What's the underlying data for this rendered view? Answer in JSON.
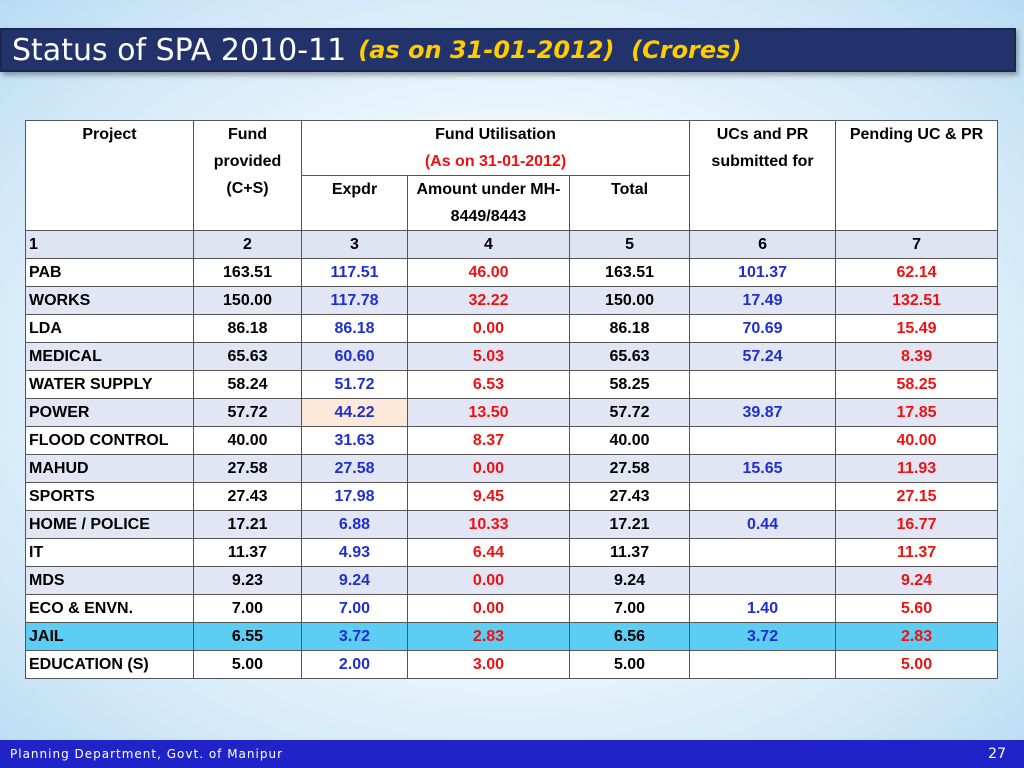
{
  "slide": {
    "title_main": "Status of SPA 2010-11",
    "title_sub": "(as on 31-01-2012)  (Crores)",
    "footer_left": "Planning Department, Govt. of Manipur",
    "page_number": "27"
  },
  "table": {
    "headers": {
      "project": "Project",
      "fund_provided": "Fund provided (C+S)",
      "fund_utilisation": "Fund Utilisation",
      "fund_utilisation_date": "(As on 31-01-2012)",
      "expdr": "Expdr",
      "amount_under": "Amount under MH-8449/8443",
      "total": "Total",
      "ucs_pr": "UCs and PR submitted for",
      "pending": "Pending UC & PR"
    },
    "column_numbers": [
      "1",
      "2",
      "3",
      "4",
      "5",
      "6",
      "7"
    ],
    "rows": [
      {
        "project": "PAB",
        "fund": "163.51",
        "expdr": "117.51",
        "amount": "46.00",
        "total": "163.51",
        "ucs": "101.37",
        "pending": "62.14"
      },
      {
        "project": "WORKS",
        "fund": "150.00",
        "expdr": "117.78",
        "amount": "32.22",
        "total": "150.00",
        "ucs": "17.49",
        "pending": "132.51"
      },
      {
        "project": "LDA",
        "fund": "86.18",
        "expdr": "86.18",
        "amount": "0.00",
        "total": "86.18",
        "ucs": "70.69",
        "pending": "15.49"
      },
      {
        "project": "MEDICAL",
        "fund": "65.63",
        "expdr": "60.60",
        "amount": "5.03",
        "total": "65.63",
        "ucs": "57.24",
        "pending": "8.39"
      },
      {
        "project": "WATER SUPPLY",
        "fund": "58.24",
        "expdr": "51.72",
        "amount": "6.53",
        "total": "58.25",
        "ucs": "",
        "pending": "58.25"
      },
      {
        "project": "POWER",
        "fund": "57.72",
        "expdr": "44.22",
        "amount": "13.50",
        "total": "57.72",
        "ucs": "39.87",
        "pending": "17.85"
      },
      {
        "project": "FLOOD CONTROL",
        "fund": "40.00",
        "expdr": "31.63",
        "amount": "8.37",
        "total": "40.00",
        "ucs": "",
        "pending": "40.00"
      },
      {
        "project": "MAHUD",
        "fund": "27.58",
        "expdr": "27.58",
        "amount": "0.00",
        "total": "27.58",
        "ucs": "15.65",
        "pending": "11.93"
      },
      {
        "project": "SPORTS",
        "fund": "27.43",
        "expdr": "17.98",
        "amount": "9.45",
        "total": "27.43",
        "ucs": "",
        "pending": "27.15"
      },
      {
        "project": "HOME / POLICE",
        "fund": "17.21",
        "expdr": "6.88",
        "amount": "10.33",
        "total": "17.21",
        "ucs": "0.44",
        "pending": "16.77"
      },
      {
        "project": "IT",
        "fund": "11.37",
        "expdr": "4.93",
        "amount": "6.44",
        "total": "11.37",
        "ucs": "",
        "pending": "11.37"
      },
      {
        "project": "MDS",
        "fund": "9.23",
        "expdr": "9.24",
        "amount": "0.00",
        "total": "9.24",
        "ucs": "",
        "pending": "9.24"
      },
      {
        "project": "ECO & ENVN.",
        "fund": "7.00",
        "expdr": "7.00",
        "amount": "0.00",
        "total": "7.00",
        "ucs": "1.40",
        "pending": "5.60"
      },
      {
        "project": "JAIL",
        "fund": "6.55",
        "expdr": "3.72",
        "amount": "2.83",
        "total": "6.56",
        "ucs": "3.72",
        "pending": "2.83"
      },
      {
        "project": "EDUCATION (S)",
        "fund": "5.00",
        "expdr": "2.00",
        "amount": "3.00",
        "total": "5.00",
        "ucs": "",
        "pending": "5.00"
      }
    ]
  },
  "colors": {
    "title_bar": "#22336b",
    "title_sub": "#ffcc00",
    "value_blue": "#1e2fd0",
    "value_red": "#ee1111",
    "row_highlight": "#5ecdf3",
    "cell_highlight": "#fde9d9",
    "footer": "#1f23c8"
  }
}
